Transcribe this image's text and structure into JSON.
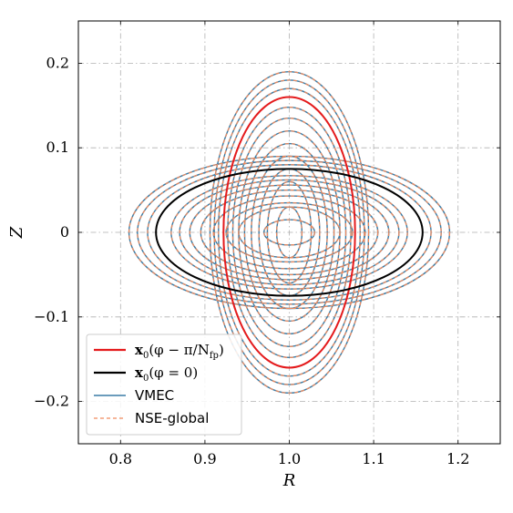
{
  "chart_data": {
    "type": "line",
    "xlabel": "R",
    "ylabel": "Z",
    "xlim": [
      0.75,
      1.25
    ],
    "ylim": [
      -0.25,
      0.25
    ],
    "xticks": [
      0.8,
      0.9,
      1.0,
      1.1,
      1.2
    ],
    "xtick_labels": [
      "0.8",
      "0.9",
      "1.0",
      "1.1",
      "1.2"
    ],
    "yticks": [
      -0.2,
      -0.1,
      0.0,
      0.1,
      0.2
    ],
    "ytick_labels": [
      "−0.2",
      "−0.1",
      "0",
      "0.1",
      "0.2"
    ],
    "grid": true,
    "legend_position": "lower-left",
    "center": [
      1.0,
      0.0
    ],
    "colors": {
      "vmec": "#3a7ca5",
      "nse": "#f08a5d",
      "x0_pi": "#e41a1c",
      "x0_zero": "#000000"
    },
    "series": [
      {
        "name": "x₀(φ − π/Nₙₚ)",
        "style": "solid-thick",
        "color": "#e41a1c",
        "ellipses": [
          {
            "semi_r": 0.078,
            "semi_z": 0.16
          }
        ]
      },
      {
        "name": "x₀(φ = 0)",
        "style": "solid-thick",
        "color": "#000000",
        "ellipses": [
          {
            "semi_r": 0.158,
            "semi_z": 0.075
          }
        ]
      },
      {
        "name": "VMEC",
        "style": "solid",
        "color": "#3a7ca5",
        "ellipses_vertical": [
          {
            "semi_r": 0.015,
            "semi_z": 0.03
          },
          {
            "semi_r": 0.026,
            "semi_z": 0.06
          },
          {
            "semi_r": 0.036,
            "semi_z": 0.075
          },
          {
            "semi_r": 0.045,
            "semi_z": 0.09
          },
          {
            "semi_r": 0.053,
            "semi_z": 0.105
          },
          {
            "semi_r": 0.06,
            "semi_z": 0.12
          },
          {
            "semi_r": 0.067,
            "semi_z": 0.135
          },
          {
            "semi_r": 0.073,
            "semi_z": 0.148
          },
          {
            "semi_r": 0.084,
            "semi_z": 0.17
          },
          {
            "semi_r": 0.089,
            "semi_z": 0.18
          },
          {
            "semi_r": 0.094,
            "semi_z": 0.19
          }
        ],
        "ellipses_horizontal": [
          {
            "semi_r": 0.03,
            "semi_z": 0.015
          },
          {
            "semi_r": 0.06,
            "semi_z": 0.03
          },
          {
            "semi_r": 0.075,
            "semi_z": 0.035
          },
          {
            "semi_r": 0.09,
            "semi_z": 0.043
          },
          {
            "semi_r": 0.105,
            "semi_z": 0.05
          },
          {
            "semi_r": 0.118,
            "semi_z": 0.056
          },
          {
            "semi_r": 0.13,
            "semi_z": 0.062
          },
          {
            "semi_r": 0.14,
            "semi_z": 0.067
          },
          {
            "semi_r": 0.168,
            "semi_z": 0.08
          },
          {
            "semi_r": 0.18,
            "semi_z": 0.085
          },
          {
            "semi_r": 0.19,
            "semi_z": 0.09
          }
        ]
      },
      {
        "name": "NSE-global",
        "style": "dashed",
        "color": "#f08a5d",
        "same_as": "VMEC"
      }
    ]
  },
  "legend": {
    "items": [
      {
        "label_main": "x",
        "label_sub": "0",
        "label_rest": "(φ − π/N",
        "label_sub2": "fp",
        "label_end": ")",
        "color": "#e41a1c",
        "style": "solid-thick"
      },
      {
        "label_main": "x",
        "label_sub": "0",
        "label_rest": "(φ = 0)",
        "color": "#000000",
        "style": "solid-thick"
      },
      {
        "label": "VMEC",
        "color": "#3a7ca5",
        "style": "solid"
      },
      {
        "label": "NSE-global",
        "color": "#f08a5d",
        "style": "dashed"
      }
    ]
  }
}
